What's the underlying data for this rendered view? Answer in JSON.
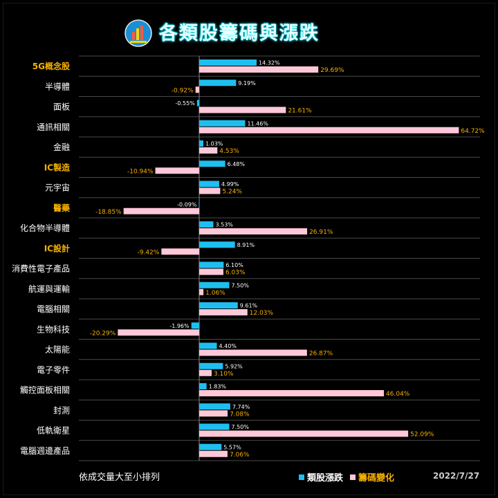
{
  "title": "各類股籌碼與漲跌",
  "footnote": "依成交量大至小排列",
  "date": "2022/7/27",
  "colors": {
    "series1": "#1ebff0",
    "series2": "#ffc8d8",
    "label2": "#f5b100",
    "highlight": "#f5b100"
  },
  "chart_data": {
    "type": "bar",
    "orientation": "horizontal",
    "categories": [
      "5G概念股",
      "半導體",
      "面板",
      "通訊相關",
      "金融",
      "IC製造",
      "元宇宙",
      "醫藥",
      "化合物半導體",
      "IC設計",
      "消費性電子產品",
      "航運與運輸",
      "電腦相關",
      "生物科技",
      "太陽能",
      "電子零件",
      "觸控面板相關",
      "封測",
      "低軌衛星",
      "電腦週邊產品"
    ],
    "highlighted": [
      "5G概念股",
      "IC製造",
      "醫藥",
      "IC設計"
    ],
    "series": [
      {
        "name": "類股漲跌",
        "values": [
          14.32,
          9.19,
          -0.55,
          11.46,
          1.03,
          6.48,
          4.99,
          -0.09,
          3.53,
          8.91,
          6.1,
          7.5,
          9.61,
          -1.96,
          4.4,
          5.92,
          1.83,
          7.74,
          7.5,
          5.57
        ],
        "labels": [
          "14.32%",
          "9.19%",
          "-0.55%",
          "11.46%",
          "1.03%",
          "6.48%",
          "4.99%",
          "-0.09%",
          "3.53%",
          "8.91%",
          "6.10%",
          "7.50%",
          "9.61%",
          "-1.96%",
          "4.40%",
          "5.92%",
          "1.83%",
          "7.74%",
          "7.50%",
          "5.57%"
        ]
      },
      {
        "name": "籌碼變化",
        "values": [
          29.69,
          -0.92,
          21.61,
          64.72,
          4.53,
          -10.94,
          5.24,
          -18.85,
          26.91,
          -9.42,
          6.03,
          1.06,
          12.03,
          -20.29,
          26.87,
          3.1,
          46.04,
          7.08,
          52.09,
          7.06
        ],
        "labels": [
          "29.69%",
          "-0.92%",
          "21.61%",
          "64.72%",
          "4.53%",
          "-10.94%",
          "5.24%",
          "-18.85%",
          "26.91%",
          "-9.42%",
          "6.03%",
          "1.06%",
          "12.03%",
          "-20.29%",
          "26.87%",
          "3.10%",
          "46.04%",
          "7.08%",
          "52.09%",
          "7.06%"
        ]
      }
    ],
    "legend": "bottom-right",
    "grid": true
  }
}
